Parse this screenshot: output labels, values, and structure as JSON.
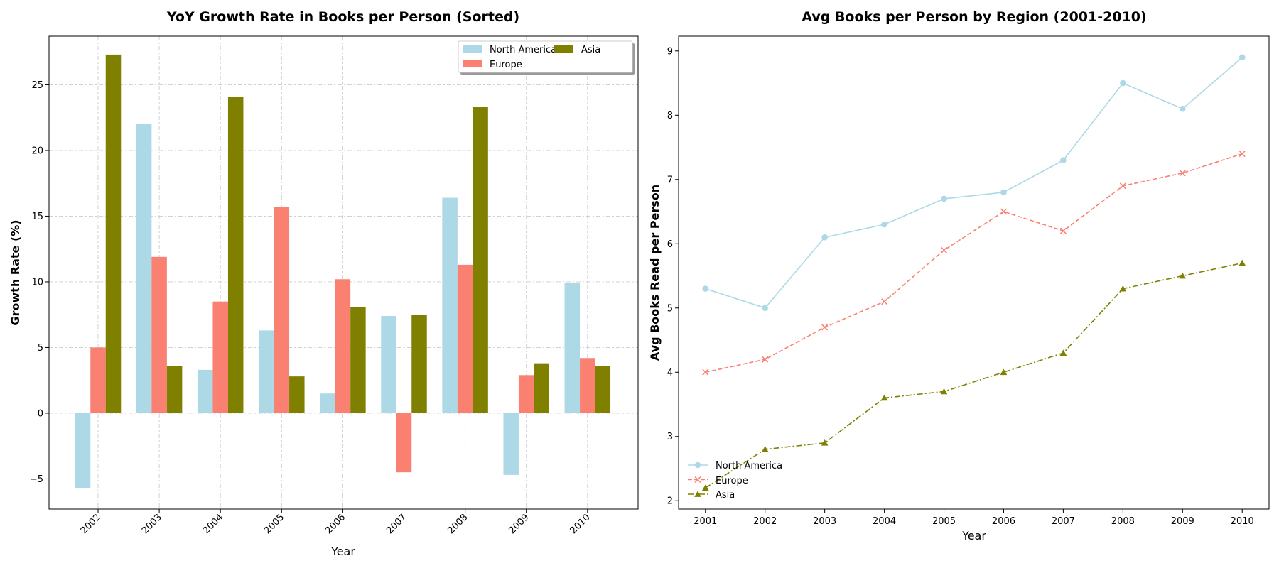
{
  "chart_data": [
    {
      "type": "bar",
      "title": "YoY Growth Rate in Books per Person (Sorted)",
      "xlabel": "Year",
      "ylabel": "Growth Rate (%)",
      "categories": [
        "2002",
        "2003",
        "2004",
        "2005",
        "2006",
        "2007",
        "2008",
        "2009",
        "2010"
      ],
      "series": [
        {
          "name": "North America",
          "color": "#add8e6",
          "values": [
            -5.7,
            22.0,
            3.3,
            6.3,
            1.5,
            7.4,
            16.4,
            -4.7,
            9.9
          ]
        },
        {
          "name": "Europe",
          "color": "#fa8072",
          "values": [
            5.0,
            11.9,
            8.5,
            15.7,
            10.2,
            -4.5,
            11.3,
            2.9,
            4.2
          ]
        },
        {
          "name": "Asia",
          "color": "#808000",
          "values": [
            27.3,
            3.6,
            24.1,
            2.8,
            8.1,
            7.5,
            23.3,
            3.8,
            3.6
          ]
        }
      ],
      "ylim": [
        -7.3,
        28.7
      ],
      "yticks": [
        -5,
        0,
        5,
        10,
        15,
        20,
        25
      ],
      "ytick_labels": [
        "−5",
        "0",
        "5",
        "10",
        "15",
        "20",
        "25"
      ],
      "grid": true,
      "legend_position": "top-right",
      "legend_columns": 2
    },
    {
      "type": "line",
      "title": "Avg Books per Person by Region (2001-2010)",
      "xlabel": "Year",
      "ylabel": "Avg Books Read per Person",
      "x": [
        2001,
        2002,
        2003,
        2004,
        2005,
        2006,
        2007,
        2008,
        2009,
        2010
      ],
      "x_labels": [
        "2001",
        "2002",
        "2003",
        "2004",
        "2005",
        "2006",
        "2007",
        "2008",
        "2009",
        "2010"
      ],
      "series": [
        {
          "name": "North America",
          "color": "#add8e6",
          "marker": "circle",
          "line_style": "solid",
          "values": [
            5.3,
            5.0,
            6.1,
            6.3,
            6.7,
            6.8,
            7.3,
            8.5,
            8.1,
            8.9
          ]
        },
        {
          "name": "Europe",
          "color": "#fa8072",
          "marker": "x",
          "line_style": "dashed",
          "values": [
            4.0,
            4.2,
            4.7,
            5.1,
            5.9,
            6.5,
            6.2,
            6.9,
            7.1,
            7.4
          ]
        },
        {
          "name": "Asia",
          "color": "#808000",
          "marker": "triangle",
          "line_style": "dashdot",
          "values": [
            2.2,
            2.8,
            2.9,
            3.6,
            3.7,
            4.0,
            4.3,
            5.3,
            5.5,
            5.7
          ]
        }
      ],
      "xlim": [
        2000.55,
        2010.45
      ],
      "ylim": [
        1.87,
        9.23
      ],
      "yticks": [
        2,
        3,
        4,
        5,
        6,
        7,
        8,
        9
      ],
      "ytick_labels": [
        "2",
        "3",
        "4",
        "5",
        "6",
        "7",
        "8",
        "9"
      ],
      "grid": false,
      "legend_position": "bottom-left"
    }
  ]
}
